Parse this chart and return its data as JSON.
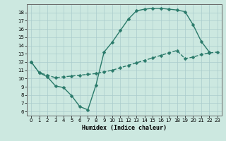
{
  "title": "",
  "xlabel": "Humidex (Indice chaleur)",
  "bg_color": "#cce8e0",
  "grid_color": "#aacccc",
  "line_color": "#2a7a6a",
  "xlim": [
    -0.5,
    23.5
  ],
  "ylim": [
    5.5,
    19.0
  ],
  "xticks": [
    0,
    1,
    2,
    3,
    4,
    5,
    6,
    7,
    8,
    9,
    10,
    11,
    12,
    13,
    14,
    15,
    16,
    17,
    18,
    19,
    20,
    21,
    22,
    23
  ],
  "yticks": [
    6,
    7,
    8,
    9,
    10,
    11,
    12,
    13,
    14,
    15,
    16,
    17,
    18
  ],
  "line1_x": [
    0,
    1,
    2,
    3,
    4,
    5,
    6,
    7,
    8,
    9,
    10,
    11,
    12,
    13,
    14,
    15,
    16,
    17,
    18,
    19,
    20,
    21,
    22
  ],
  "line1_y": [
    12,
    10.7,
    10.2,
    9.1,
    8.9,
    7.9,
    6.6,
    6.2,
    9.2,
    13.2,
    14.4,
    15.8,
    17.2,
    18.2,
    18.4,
    18.5,
    18.5,
    18.4,
    18.3,
    18.1,
    16.5,
    14.5,
    13.2
  ],
  "line2_x": [
    0,
    1,
    2,
    3,
    4,
    5,
    6,
    7,
    8,
    9,
    10,
    11,
    12,
    13,
    14,
    15,
    16,
    17,
    18,
    19,
    20,
    21,
    22,
    23
  ],
  "line2_y": [
    12,
    10.7,
    10.4,
    10.1,
    10.2,
    10.3,
    10.4,
    10.5,
    10.6,
    10.8,
    11.0,
    11.3,
    11.6,
    11.9,
    12.2,
    12.5,
    12.8,
    13.1,
    13.4,
    12.4,
    12.6,
    12.9,
    13.1,
    13.2
  ],
  "marker_size": 2.5,
  "line_width": 1.0,
  "tick_fontsize": 5.0,
  "xlabel_fontsize": 6.0
}
